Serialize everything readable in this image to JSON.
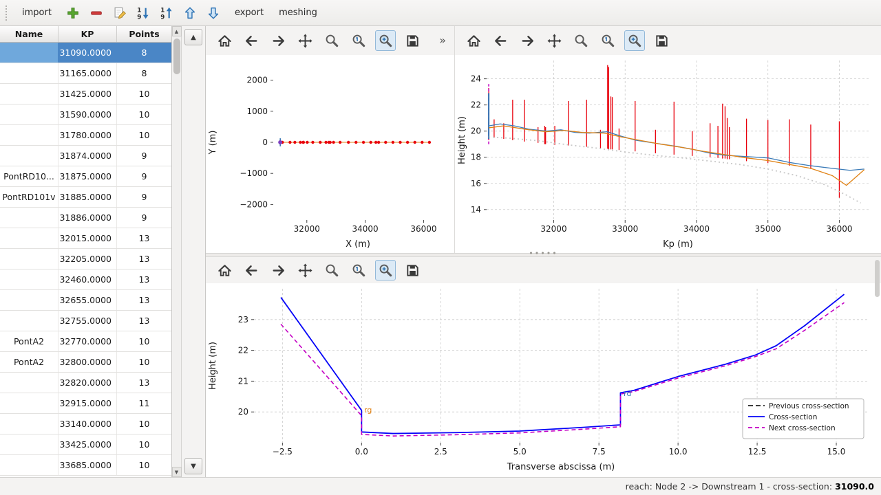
{
  "top_toolbar": {
    "import_label": "import",
    "export_label": "export",
    "meshing_label": "meshing",
    "icons": [
      "add",
      "remove",
      "edit",
      "sort-descending",
      "sort-ascending",
      "move-up",
      "move-down"
    ]
  },
  "mpl_toolbar": {
    "icons": [
      "home",
      "back",
      "forward",
      "pan",
      "zoom",
      "zoom-original",
      "zoom-selection",
      "save"
    ],
    "active": "zoom-selection",
    "overflow": "»"
  },
  "table": {
    "columns": [
      "Name",
      "KP",
      "Points"
    ],
    "rows": [
      {
        "name": "",
        "kp": "31090.0000",
        "points": "8",
        "selected": true
      },
      {
        "name": "",
        "kp": "31165.0000",
        "points": "8"
      },
      {
        "name": "",
        "kp": "31425.0000",
        "points": "10"
      },
      {
        "name": "",
        "kp": "31590.0000",
        "points": "10"
      },
      {
        "name": "",
        "kp": "31780.0000",
        "points": "10"
      },
      {
        "name": "",
        "kp": "31874.0000",
        "points": "9"
      },
      {
        "name": "PontRD10...",
        "kp": "31875.0000",
        "points": "9"
      },
      {
        "name": "PontRD101v",
        "kp": "31885.0000",
        "points": "9"
      },
      {
        "name": "",
        "kp": "31886.0000",
        "points": "9"
      },
      {
        "name": "",
        "kp": "32015.0000",
        "points": "13"
      },
      {
        "name": "",
        "kp": "32205.0000",
        "points": "13"
      },
      {
        "name": "",
        "kp": "32460.0000",
        "points": "13"
      },
      {
        "name": "",
        "kp": "32655.0000",
        "points": "13"
      },
      {
        "name": "",
        "kp": "32755.0000",
        "points": "13"
      },
      {
        "name": "PontA2",
        "kp": "32770.0000",
        "points": "10"
      },
      {
        "name": "PontA2",
        "kp": "32800.0000",
        "points": "10"
      },
      {
        "name": "",
        "kp": "32820.0000",
        "points": "13"
      },
      {
        "name": "",
        "kp": "32915.0000",
        "points": "11"
      },
      {
        "name": "",
        "kp": "33140.0000",
        "points": "10"
      },
      {
        "name": "",
        "kp": "33425.0000",
        "points": "10"
      },
      {
        "name": "",
        "kp": "33685.0000",
        "points": "10"
      }
    ]
  },
  "status_bar": {
    "prefix": "reach: Node 2 -> Downstream 1 - cross-section: ",
    "value": "31090.0"
  },
  "chart_data": [
    {
      "type": "scatter",
      "title": "",
      "xlabel": "X (m)",
      "ylabel": "Y (m)",
      "xlim": [
        30850,
        36650
      ],
      "ylim": [
        -2500,
        2500
      ],
      "xticks": [
        32000,
        34000,
        36000
      ],
      "xtick_labels": [
        "32000",
        "34000",
        "36000"
      ],
      "yticks": [
        2000,
        1000,
        0,
        -1000,
        -2000
      ],
      "ytick_labels": [
        "2000",
        "1000",
        "0",
        "−1000",
        "−2000"
      ],
      "grid": false,
      "series": [
        {
          "name": "river-axis",
          "type": "line",
          "color": "#e08214",
          "width": 1,
          "x": [
            31090,
            36250
          ],
          "y": [
            0,
            0
          ]
        },
        {
          "name": "cross-section-markers",
          "type": "scatter",
          "color": "#e8000b",
          "size": 2.2,
          "x": [
            31090,
            31165,
            31425,
            31590,
            31780,
            31874,
            31886,
            32015,
            32205,
            32460,
            32655,
            32755,
            32800,
            32915,
            33140,
            33425,
            33685,
            33940,
            34190,
            34365,
            34460,
            34700,
            34950,
            35200,
            35450,
            35700,
            35950,
            36200
          ],
          "y": [
            0,
            0,
            0,
            0,
            0,
            0,
            0,
            0,
            0,
            0,
            0,
            0,
            0,
            0,
            0,
            0,
            0,
            0,
            0,
            0,
            0,
            0,
            0,
            0,
            0,
            0,
            0,
            0
          ]
        },
        {
          "name": "selected-section-line",
          "type": "vlines",
          "color": "#2f6fb0",
          "width": 1.5,
          "segments": [
            [
              31090,
              -130,
              130
            ]
          ]
        },
        {
          "name": "selected-cross-section",
          "type": "scatter",
          "color": "#7d3fbf",
          "size": 3,
          "x": [
            31090
          ],
          "y": [
            0
          ]
        }
      ]
    },
    {
      "type": "line",
      "title": "",
      "xlabel": "Kp (m)",
      "ylabel": "Height (m)",
      "xlim": [
        31060,
        36420
      ],
      "ylim": [
        13.2,
        25.4
      ],
      "xticks": [
        32000,
        33000,
        34000,
        35000,
        36000
      ],
      "xtick_labels": [
        "32000",
        "33000",
        "34000",
        "35000",
        "36000"
      ],
      "yticks": [
        14,
        16,
        18,
        20,
        22,
        24
      ],
      "ytick_labels": [
        "14",
        "16",
        "18",
        "20",
        "22",
        "24"
      ],
      "grid": true,
      "series": [
        {
          "name": "cross-section-extents",
          "type": "vlines",
          "color": "#e8000b",
          "width": 1.3,
          "segments": [
            [
              31090,
              19.3,
              23.3
            ],
            [
              31165,
              19.5,
              20.9
            ],
            [
              31300,
              19.4,
              20.6
            ],
            [
              31425,
              19.3,
              22.4
            ],
            [
              31590,
              19.2,
              22.4
            ],
            [
              31780,
              19.1,
              20.3
            ],
            [
              31874,
              19.0,
              20.4
            ],
            [
              31886,
              19.0,
              20.3
            ],
            [
              32015,
              18.95,
              20.4
            ],
            [
              32205,
              18.9,
              22.3
            ],
            [
              32460,
              18.8,
              22.4
            ],
            [
              32655,
              18.7,
              20.1
            ],
            [
              32755,
              18.65,
              25.05
            ],
            [
              32770,
              18.6,
              24.9
            ],
            [
              32800,
              18.6,
              22.65
            ],
            [
              32820,
              18.6,
              22.6
            ],
            [
              32915,
              18.55,
              20.2
            ],
            [
              33140,
              18.45,
              22.3
            ],
            [
              33425,
              18.3,
              20.1
            ],
            [
              33685,
              18.2,
              22.25
            ],
            [
              33940,
              18.1,
              20.0
            ],
            [
              34190,
              18.0,
              20.6
            ],
            [
              34300,
              17.95,
              20.4
            ],
            [
              34365,
              17.9,
              22.1
            ],
            [
              34400,
              17.9,
              21.9
            ],
            [
              34430,
              17.85,
              21.0
            ],
            [
              34460,
              17.85,
              20.3
            ],
            [
              34700,
              17.7,
              20.95
            ],
            [
              35000,
              17.55,
              20.85
            ],
            [
              35300,
              17.35,
              20.9
            ],
            [
              35600,
              17.1,
              20.5
            ],
            [
              36000,
              14.9,
              20.75
            ]
          ]
        },
        {
          "name": "selected-section-marker",
          "type": "vlines",
          "color": "#c400c4",
          "width": 1.6,
          "dash": "4 3",
          "segments": [
            [
              31090,
              19.0,
              23.6
            ]
          ]
        },
        {
          "name": "selected-section-edge",
          "type": "vlines",
          "color": "#2f6fb0",
          "width": 2,
          "segments": [
            [
              31090,
              19.4,
              22.9
            ]
          ]
        },
        {
          "name": "left-bank",
          "type": "line",
          "color": "#3b7bb8",
          "width": 1.3,
          "x": [
            31090,
            31250,
            31450,
            31650,
            31900,
            32100,
            32300,
            32500,
            32750,
            32950,
            33150,
            33450,
            33700,
            33950,
            34200,
            34400,
            34700,
            35000,
            35300,
            35600,
            35900,
            36150,
            36350
          ],
          "y": [
            20.4,
            20.55,
            20.4,
            20.15,
            20.0,
            20.1,
            19.9,
            19.85,
            19.95,
            19.6,
            19.3,
            19.05,
            18.85,
            18.6,
            18.3,
            18.15,
            18.05,
            17.95,
            17.6,
            17.35,
            17.15,
            17.0,
            17.1
          ]
        },
        {
          "name": "right-bank",
          "type": "line",
          "color": "#e08214",
          "width": 1.3,
          "x": [
            31090,
            31300,
            31650,
            31900,
            32150,
            32400,
            32700,
            32950,
            33200,
            33500,
            33800,
            34100,
            34400,
            34700,
            35000,
            35300,
            35600,
            35900,
            36100,
            36350
          ],
          "y": [
            20.25,
            20.4,
            20.1,
            19.95,
            20.05,
            19.9,
            19.85,
            19.55,
            19.3,
            19.0,
            18.75,
            18.45,
            18.2,
            17.95,
            17.75,
            17.45,
            17.15,
            16.6,
            15.85,
            17.05
          ]
        },
        {
          "name": "thalweg",
          "type": "line",
          "color": "#c8c8c8",
          "width": 1.8,
          "dash": "2 4",
          "x": [
            31090,
            31400,
            31800,
            32200,
            32600,
            33000,
            33400,
            33800,
            34200,
            34600,
            35000,
            35400,
            35800,
            36100,
            36300
          ],
          "y": [
            19.55,
            19.45,
            19.25,
            18.95,
            18.7,
            18.4,
            18.15,
            17.95,
            17.7,
            17.45,
            17.1,
            16.6,
            15.9,
            15.1,
            14.5
          ]
        }
      ]
    },
    {
      "type": "line",
      "title": "",
      "xlabel": "Transverse abscissa (m)",
      "ylabel": "Height (m)",
      "xlim": [
        -3.4,
        16.0
      ],
      "ylim": [
        19.0,
        24.0
      ],
      "xticks": [
        -2.5,
        0.0,
        2.5,
        5.0,
        7.5,
        10.0,
        12.5,
        15.0
      ],
      "xtick_labels": [
        "−2.5",
        "0.0",
        "2.5",
        "5.0",
        "7.5",
        "10.0",
        "12.5",
        "15.0"
      ],
      "yticks": [
        20,
        21,
        22,
        23
      ],
      "ytick_labels": [
        "20",
        "21",
        "22",
        "23"
      ],
      "grid": true,
      "series": [
        {
          "name": "previous-cross-section",
          "label": "Previous cross-section",
          "type": "line",
          "color": "#222222",
          "width": 1.6,
          "dash": "7 4",
          "x": [],
          "y": []
        },
        {
          "name": "cross-section",
          "label": "Cross-section",
          "type": "line",
          "color": "#0504f8",
          "width": 1.8,
          "x": [
            -2.55,
            0.0,
            0.0,
            1.0,
            3.0,
            5.0,
            7.0,
            8.18,
            8.18,
            8.6,
            10.0,
            11.5,
            12.45,
            13.1,
            14.0,
            15.25
          ],
          "y": [
            23.72,
            20.05,
            19.35,
            19.3,
            19.33,
            19.38,
            19.5,
            19.58,
            20.62,
            20.7,
            21.15,
            21.55,
            21.85,
            22.15,
            22.8,
            23.82
          ]
        },
        {
          "name": "next-cross-section",
          "label": "Next cross-section",
          "type": "line",
          "color": "#c400c4",
          "width": 1.6,
          "dash": "6 4",
          "x": [
            -2.55,
            0.0,
            0.0,
            1.0,
            3.0,
            5.0,
            7.0,
            8.18,
            8.18,
            8.6,
            10.0,
            11.5,
            12.45,
            13.1,
            14.0,
            15.25
          ],
          "y": [
            22.85,
            19.88,
            19.27,
            19.22,
            19.26,
            19.32,
            19.44,
            19.52,
            20.58,
            20.66,
            21.1,
            21.5,
            21.8,
            22.05,
            22.65,
            23.55
          ]
        }
      ],
      "annotations": [
        {
          "text": "rg",
          "x": 0.08,
          "y": 19.98,
          "color": "#e08214"
        },
        {
          "text": "rd",
          "x": 8.28,
          "y": 20.52,
          "color": "#3f7fb5"
        }
      ],
      "legend": {
        "position": "lower-right",
        "entries": [
          {
            "label": "Previous cross-section",
            "color": "#222222",
            "dash": "7 4"
          },
          {
            "label": "Cross-section",
            "color": "#0504f8",
            "dash": ""
          },
          {
            "label": "Next cross-section",
            "color": "#c400c4",
            "dash": "6 4"
          }
        ]
      }
    }
  ]
}
